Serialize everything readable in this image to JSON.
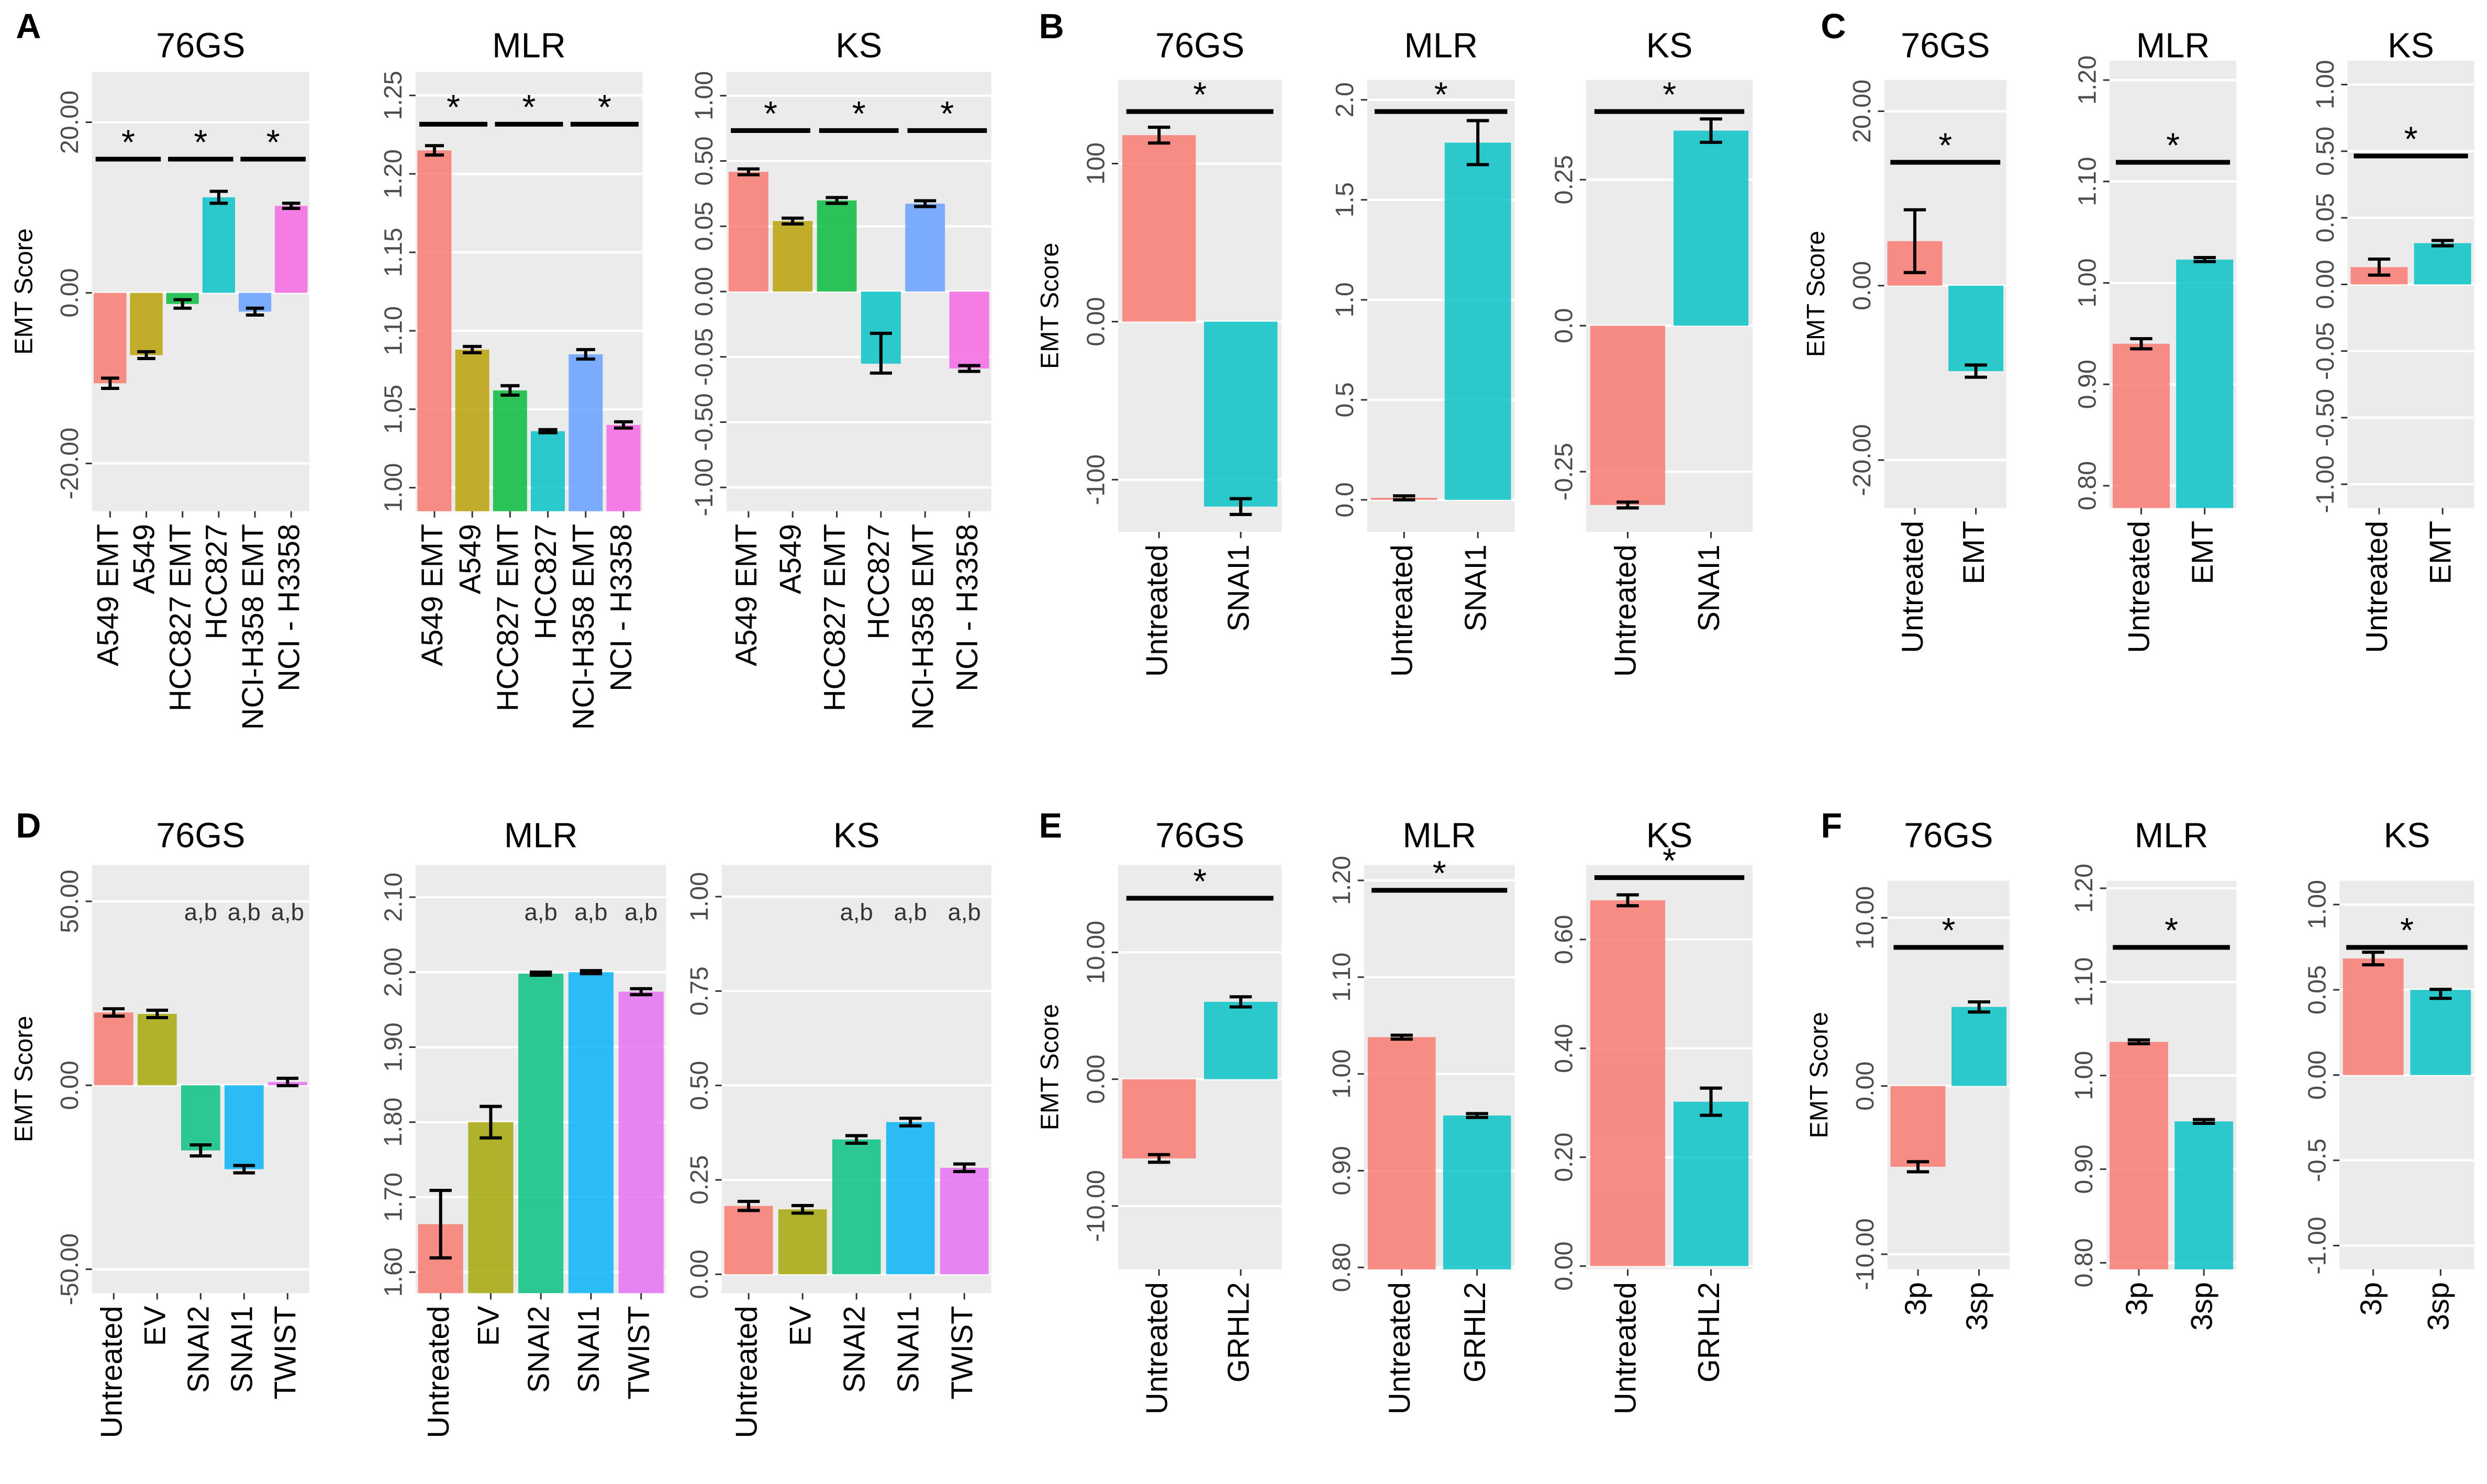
{
  "panels": [
    "A",
    "B",
    "C",
    "D",
    "E",
    "F"
  ],
  "chart_data": [
    {
      "type": "bar",
      "title": "76GS",
      "y_label": "EMT Score",
      "categories": [
        "A549 EMT",
        "A549",
        "HCC827 EMT",
        "HCC827",
        "NCI-H358 EMT",
        "NCI - H3358"
      ],
      "values": [
        -10.6,
        -7.3,
        -1.3,
        11.2,
        -2.2,
        10.2
      ],
      "errors": [
        0.6,
        0.4,
        0.5,
        0.7,
        0.4,
        0.3
      ],
      "colors": [
        "#f8766d",
        "#b79f00",
        "#00ba38",
        "#00bfc4",
        "#619cff",
        "#f564e3"
      ],
      "ylim": [
        -25.6,
        25.9
      ],
      "yticks": [
        {
          "value": 20,
          "label": "20.00"
        },
        {
          "value": 0,
          "label": "0.00"
        },
        {
          "value": -20,
          "label": "-20.00"
        }
      ],
      "significance": [
        {
          "between": [
            0,
            1
          ],
          "label": "*"
        },
        {
          "between": [
            2,
            3
          ],
          "label": "*"
        },
        {
          "between": [
            4,
            5
          ],
          "label": "*"
        }
      ],
      "grid": true
    },
    {
      "type": "bar",
      "title": "MLR",
      "categories": [
        "A549 EMT",
        "A549",
        "HCC827 EMT",
        "HCC827",
        "NCI-H358 EMT",
        "NCI - H3358"
      ],
      "values": [
        1.215,
        1.088,
        1.062,
        1.036,
        1.085,
        1.04
      ],
      "errors": [
        0.003,
        0.002,
        0.003,
        0.001,
        0.003,
        0.002
      ],
      "colors": [
        "#f8766d",
        "#b79f00",
        "#00ba38",
        "#00bfc4",
        "#619cff",
        "#f564e3"
      ],
      "ylim": [
        0.985,
        1.265
      ],
      "yticks": [
        1.25,
        {
          "value": 1.2,
          "label": "1.20"
        },
        1.15,
        {
          "value": 1.1,
          "label": "1.10"
        },
        1.05,
        {
          "value": 1,
          "label": "1.00"
        }
      ],
      "significance": [
        {
          "between": [
            0,
            1
          ],
          "label": "*"
        },
        {
          "between": [
            2,
            3
          ],
          "label": "*"
        },
        {
          "between": [
            4,
            5
          ],
          "label": "*"
        }
      ],
      "grid": true
    },
    {
      "type": "bar",
      "title": "KS",
      "yscale": "piecewise",
      "categories": [
        "A549 EMT",
        "A549",
        "HCC827 EMT",
        "HCC827",
        "NCI-H358 EMT",
        "NCI - H3358"
      ],
      "values": [
        0.425,
        0.086,
        0.228,
        -0.097,
        0.206,
        -0.13
      ],
      "errors": [
        0.02,
        0.02,
        0.02,
        0.065,
        0.02,
        0.02
      ],
      "colors": [
        "#f8766d",
        "#b79f00",
        "#00ba38",
        "#00bfc4",
        "#619cff",
        "#f564e3"
      ],
      "ylim": [
        -1,
        1
      ],
      "yticks": [
        {
          "value": 1,
          "label": "1.00"
        },
        {
          "value": 0.5,
          "label": "0.50"
        },
        0.05,
        {
          "value": 0,
          "label": "0.00"
        },
        -0.05,
        {
          "value": -0.5,
          "label": "-0.50"
        },
        {
          "value": -1,
          "label": "-1.00"
        }
      ],
      "significance": [
        {
          "between": [
            0,
            1
          ],
          "label": "*"
        },
        {
          "between": [
            2,
            3
          ],
          "label": "*"
        },
        {
          "between": [
            4,
            5
          ],
          "label": "*"
        }
      ],
      "grid": true
    },
    {
      "type": "bar",
      "title": "76GS",
      "y_label": "EMT Score",
      "categories": [
        "Untreated",
        "SNAI1"
      ],
      "values": [
        118,
        -117
      ],
      "errors": [
        5,
        5
      ],
      "colors": [
        "#f8766d",
        "#00bfc4"
      ],
      "ylim": [
        -133,
        153
      ],
      "yticks": [
        100,
        {
          "value": 0,
          "label": "0.00"
        },
        -100
      ],
      "significance": [
        {
          "between": [
            0,
            1
          ],
          "label": "*"
        }
      ],
      "grid": true
    },
    {
      "type": "bar",
      "title": "MLR",
      "categories": [
        "Untreated",
        "SNAI1"
      ],
      "values": [
        0.01,
        1.786
      ],
      "errors": [
        0.01,
        0.11
      ],
      "colors": [
        "#f8766d",
        "#00bfc4"
      ],
      "ylim": [
        -0.16,
        2.1
      ],
      "yticks": [
        {
          "value": 2,
          "label": "2.0"
        },
        1.5,
        {
          "value": 1,
          "label": "1.0"
        },
        0.5,
        {
          "value": 0,
          "label": "0.0"
        }
      ],
      "significance": [
        {
          "between": [
            0,
            1
          ],
          "label": "*"
        }
      ],
      "grid": true
    },
    {
      "type": "bar",
      "title": "KS",
      "categories": [
        "Untreated",
        "SNAI1"
      ],
      "values": [
        -0.307,
        0.334
      ],
      "errors": [
        0.005,
        0.02
      ],
      "colors": [
        "#f8766d",
        "#00bfc4"
      ],
      "ylim": [
        -0.353,
        0.421
      ],
      "yticks": [
        0.25,
        {
          "value": 0,
          "label": "0.0"
        },
        -0.25
      ],
      "significance": [
        {
          "between": [
            0,
            1
          ],
          "label": "*"
        }
      ],
      "grid": true
    },
    {
      "type": "bar",
      "title": "76GS",
      "y_label": "EMT Score",
      "categories": [
        "Untreated",
        "EMT"
      ],
      "values": [
        5.1,
        -9.8
      ],
      "errors": [
        3.6,
        0.7
      ],
      "colors": [
        "#f8766d",
        "#00bfc4"
      ],
      "ylim": [
        -25.5,
        23.6
      ],
      "yticks": [
        {
          "value": 20,
          "label": "20.00"
        },
        {
          "value": 0,
          "label": "0.00"
        },
        {
          "value": -20,
          "label": "-20.00"
        }
      ],
      "significance": [
        {
          "between": [
            0,
            1
          ],
          "label": "*"
        }
      ],
      "grid": true
    },
    {
      "type": "bar",
      "title": "MLR",
      "categories": [
        "Untreated",
        "EMT"
      ],
      "values": [
        0.94,
        1.023
      ],
      "errors": [
        0.005,
        0.002
      ],
      "colors": [
        "#f8766d",
        "#00bfc4"
      ],
      "ylim": [
        0.778,
        1.219
      ],
      "yticks": [
        {
          "value": 1.2,
          "label": "1.20"
        },
        {
          "value": 1.1,
          "label": "1.10"
        },
        {
          "value": 1,
          "label": "1.00"
        },
        {
          "value": 0.9,
          "label": "0.90"
        },
        {
          "value": 0.8,
          "label": "0.80"
        }
      ],
      "significance": [
        {
          "between": [
            0,
            1
          ],
          "label": "*"
        }
      ],
      "grid": true
    },
    {
      "type": "bar",
      "title": "KS",
      "yscale": "piecewise",
      "categories": [
        "Untreated",
        "EMT"
      ],
      "values": [
        0.013,
        0.031
      ],
      "errors": [
        0.006,
        0.002
      ],
      "colors": [
        "#f8766d",
        "#00bfc4"
      ],
      "ylim": [
        -1,
        1
      ],
      "yticks": [
        {
          "value": 1,
          "label": "1.00"
        },
        {
          "value": 0.5,
          "label": "0.50"
        },
        0.05,
        {
          "value": 0,
          "label": "0.00"
        },
        -0.05,
        {
          "value": -0.5,
          "label": "-0.50"
        },
        {
          "value": -1,
          "label": "-1.00"
        }
      ],
      "significance": [
        {
          "between": [
            0,
            1
          ],
          "label": "*"
        }
      ],
      "grid": true
    },
    {
      "type": "bar",
      "title": "76GS",
      "y_label": "EMT Score",
      "categories": [
        "Untreated",
        "EV",
        "SNAI2",
        "SNAI1",
        "TWIST"
      ],
      "values": [
        19.8,
        19.4,
        -17.7,
        -22.8,
        0.9
      ],
      "errors": [
        1,
        1,
        1.5,
        1,
        1
      ],
      "colors": [
        "#f8766d",
        "#a3a500",
        "#00bf7d",
        "#00b0f6",
        "#e76bf3"
      ],
      "ylim": [
        -56.5,
        59.9
      ],
      "yticks": [
        {
          "value": 50,
          "label": "50.00"
        },
        {
          "value": 0,
          "label": "0.00"
        },
        {
          "value": -50,
          "label": "-50.00"
        }
      ],
      "annotations": [
        {
          "category": 2,
          "text": "a,b"
        },
        {
          "category": 3,
          "text": "a,b"
        },
        {
          "category": 4,
          "text": "a,b"
        }
      ],
      "grid": true
    },
    {
      "type": "bar",
      "title": "MLR",
      "categories": [
        "Untreated",
        "EV",
        "SNAI2",
        "SNAI1",
        "TWIST"
      ],
      "values": [
        1.664,
        1.8,
        1.998,
        2.0,
        1.974
      ],
      "errors": [
        0.045,
        0.021,
        0.002,
        0.002,
        0.004
      ],
      "colors": [
        "#f8766d",
        "#a3a500",
        "#00bf7d",
        "#00b0f6",
        "#e76bf3"
      ],
      "ylim": [
        1.572,
        2.143
      ],
      "yticks": [
        {
          "value": 1.6,
          "label": "1.60"
        },
        {
          "value": 1.7,
          "label": "1.70"
        },
        {
          "value": 1.8,
          "label": "1.80"
        },
        {
          "value": 1.9,
          "label": "1.90"
        },
        {
          "value": 2,
          "label": "2.00"
        },
        {
          "value": 2.1,
          "label": "2.10"
        }
      ],
      "annotations": [
        {
          "category": 2,
          "text": "a,b"
        },
        {
          "category": 3,
          "text": "a,b"
        },
        {
          "category": 4,
          "text": "a,b"
        }
      ],
      "grid": true
    },
    {
      "type": "bar",
      "title": "KS",
      "categories": [
        "Untreated",
        "EV",
        "SNAI2",
        "SNAI1",
        "TWIST"
      ],
      "values": [
        0.181,
        0.172,
        0.357,
        0.403,
        0.282
      ],
      "errors": [
        0.012,
        0.01,
        0.01,
        0.01,
        0.01
      ],
      "colors": [
        "#f8766d",
        "#a3a500",
        "#00bf7d",
        "#00b0f6",
        "#e76bf3"
      ],
      "ylim": [
        -0.05,
        1.084
      ],
      "yticks": [
        {
          "value": 0,
          "label": "0.00"
        },
        0.25,
        {
          "value": 0.5,
          "label": "0.50"
        },
        0.75,
        {
          "value": 1,
          "label": "1.00"
        }
      ],
      "annotations": [
        {
          "category": 2,
          "text": "a,b"
        },
        {
          "category": 3,
          "text": "a,b"
        },
        {
          "category": 4,
          "text": "a,b"
        }
      ],
      "grid": true
    },
    {
      "type": "bar",
      "title": "76GS",
      "y_label": "EMT Score",
      "categories": [
        "Untreated",
        "GRHL2"
      ],
      "values": [
        -6.25,
        6.1
      ],
      "errors": [
        0.3,
        0.4
      ],
      "colors": [
        "#f8766d",
        "#00bfc4"
      ],
      "ylim": [
        -15,
        16.9
      ],
      "yticks": [
        {
          "value": 10,
          "label": "10.00"
        },
        {
          "value": 0,
          "label": "0.00"
        },
        {
          "value": -10,
          "label": "-10.00"
        }
      ],
      "significance": [
        {
          "between": [
            0,
            1
          ],
          "label": "*"
        }
      ],
      "grid": true
    },
    {
      "type": "bar",
      "title": "MLR",
      "categories": [
        "Untreated",
        "GRHL2"
      ],
      "values": [
        1.038,
        0.957
      ],
      "errors": [
        0.002,
        0.002
      ],
      "colors": [
        "#f8766d",
        "#00bfc4"
      ],
      "ylim": [
        0.798,
        1.216
      ],
      "yticks": [
        {
          "value": 1.2,
          "label": "1.20"
        },
        {
          "value": 1.1,
          "label": "1.10"
        },
        {
          "value": 1,
          "label": "1.00"
        },
        {
          "value": 0.9,
          "label": "0.90"
        },
        {
          "value": 0.8,
          "label": "0.80"
        }
      ],
      "significance": [
        {
          "between": [
            0,
            1
          ],
          "label": "*"
        }
      ],
      "grid": true
    },
    {
      "type": "bar",
      "title": "KS",
      "categories": [
        "Untreated",
        "GRHL2"
      ],
      "values": [
        0.672,
        0.302
      ],
      "errors": [
        0.01,
        0.025
      ],
      "colors": [
        "#f8766d",
        "#00bfc4"
      ],
      "ylim": [
        -0.006,
        0.737
      ],
      "yticks": [
        {
          "value": 0.6,
          "label": "0.60"
        },
        {
          "value": 0.4,
          "label": "0.40"
        },
        {
          "value": 0.2,
          "label": "0.20"
        },
        {
          "value": 0,
          "label": "0.00"
        }
      ],
      "significance": [
        {
          "between": [
            0,
            1
          ],
          "label": "*"
        }
      ],
      "grid": true
    },
    {
      "type": "bar",
      "title": "76GS",
      "y_label": "EMT Score",
      "categories": [
        "3p",
        "3sp"
      ],
      "values": [
        -4.8,
        4.7
      ],
      "errors": [
        0.3,
        0.3
      ],
      "colors": [
        "#f8766d",
        "#00bfc4"
      ],
      "ylim": [
        -10.9,
        12.2
      ],
      "yticks": [
        {
          "value": 10,
          "label": "10.00"
        },
        {
          "value": 0,
          "label": "0.00"
        },
        {
          "value": -10,
          "label": "-10.00"
        }
      ],
      "significance": [
        {
          "between": [
            0,
            1
          ],
          "label": "*"
        }
      ],
      "grid": true
    },
    {
      "type": "bar",
      "title": "MLR",
      "categories": [
        "3p",
        "3sp"
      ],
      "values": [
        1.036,
        0.951
      ],
      "errors": [
        0.002,
        0.002
      ],
      "colors": [
        "#f8766d",
        "#00bfc4"
      ],
      "ylim": [
        0.793,
        1.208
      ],
      "yticks": [
        {
          "value": 1.2,
          "label": "1.20"
        },
        {
          "value": 1.1,
          "label": "1.10"
        },
        {
          "value": 1,
          "label": "1.00"
        },
        {
          "value": 0.9,
          "label": "0.90"
        },
        {
          "value": 0.8,
          "label": "0.80"
        }
      ],
      "significance": [
        {
          "between": [
            0,
            1
          ],
          "label": "*"
        }
      ],
      "grid": true
    },
    {
      "type": "bar",
      "title": "KS",
      "yscale": "piecewise",
      "categories": [
        "3p",
        "3sp"
      ],
      "values": [
        0.399,
        0.05
      ],
      "errors": [
        0.07,
        0.005
      ],
      "colors": [
        "#f8766d",
        "#00bfc4"
      ],
      "ylim": [
        -1,
        1
      ],
      "yticks": [
        {
          "value": 1,
          "label": "1.00"
        },
        0.05,
        {
          "value": 0,
          "label": "0.00"
        },
        -0.5,
        {
          "value": -1,
          "label": "-1.00"
        }
      ],
      "significance": [
        {
          "between": [
            0,
            1
          ],
          "label": "*"
        }
      ],
      "grid": true
    }
  ]
}
